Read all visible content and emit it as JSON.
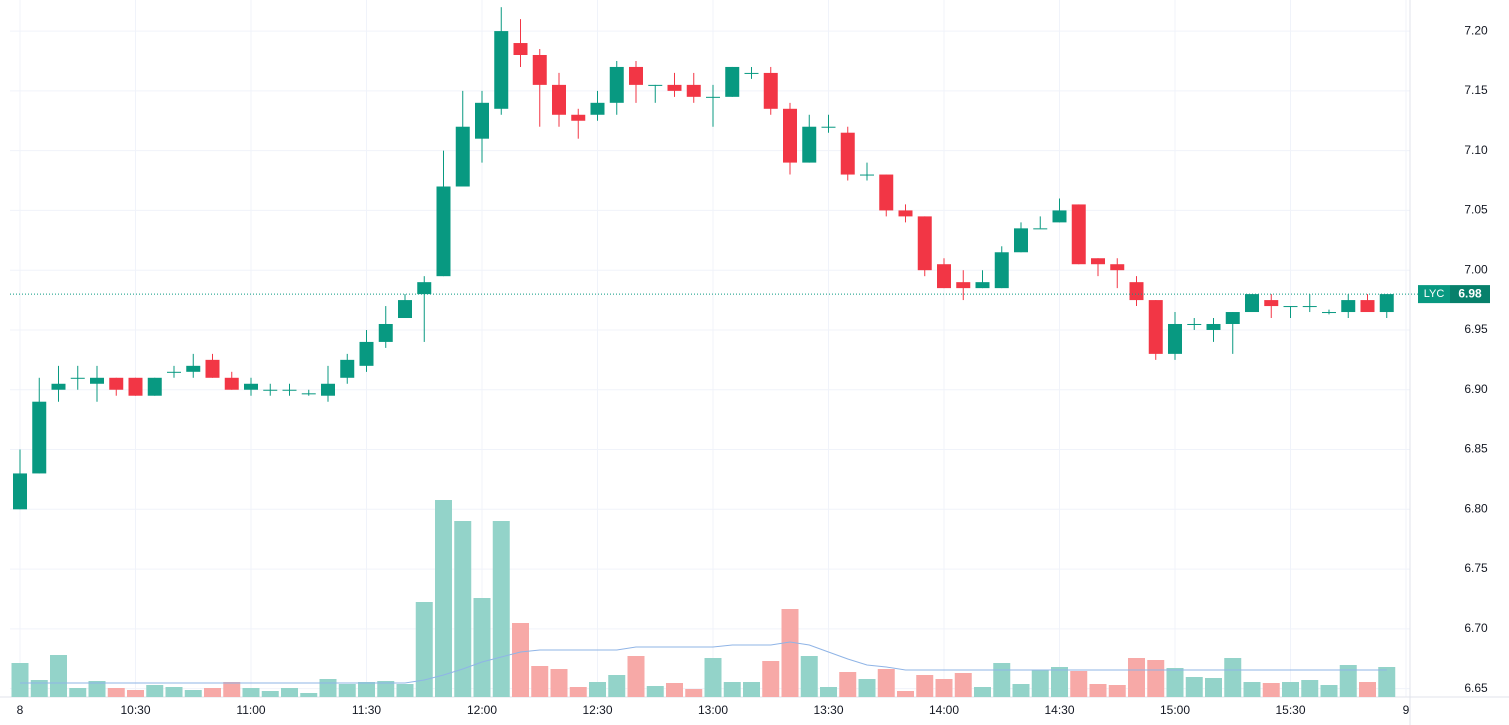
{
  "chart_data": {
    "type": "candlestick",
    "symbol": "LYC",
    "last_price": 6.98,
    "up_color": "#089981",
    "down_color": "#f23645",
    "volume_up_color": "#93d3c9",
    "volume_down_color": "#f7a9a7",
    "volume_ma_color": "#8fb4e6",
    "grid": true,
    "ylim": [
      6.643,
      7.226
    ],
    "yticks": [
      6.65,
      {
        "value": 6.7,
        "label": "6.70"
      },
      6.75,
      {
        "value": 6.8,
        "label": "6.80"
      },
      6.85,
      {
        "value": 6.9,
        "label": "6.90"
      },
      6.95,
      {
        "value": 7.0,
        "label": "7.00"
      },
      7.05,
      {
        "value": 7.1,
        "label": "7.10"
      },
      7.15,
      {
        "value": 7.2,
        "label": "7.20"
      }
    ],
    "xtick_labels": [
      "8",
      "10:30",
      "11:00",
      "11:30",
      "12:00",
      "12:30",
      "13:00",
      "13:30",
      "14:00",
      "14:30",
      "15:00",
      "15:30",
      "9"
    ],
    "open": [
      6.8,
      6.83,
      6.9,
      6.91,
      6.905,
      6.91,
      6.91,
      6.895,
      6.915,
      6.915,
      6.925,
      6.91,
      6.9,
      6.9,
      6.9,
      6.897,
      6.895,
      6.91,
      6.92,
      6.94,
      6.96,
      6.98,
      6.995,
      7.07,
      7.11,
      7.135,
      7.19,
      7.18,
      7.155,
      7.13,
      7.13,
      7.14,
      7.17,
      7.155,
      7.155,
      7.155,
      7.145,
      7.145,
      7.165,
      7.165,
      7.135,
      7.09,
      7.12,
      7.115,
      7.08,
      7.08,
      7.05,
      7.045,
      7.005,
      6.99,
      6.985,
      6.985,
      7.015,
      7.035,
      7.04,
      7.055,
      7.01,
      7.005,
      6.99,
      6.975,
      6.93,
      6.955,
      6.95,
      6.955,
      6.965,
      6.975,
      6.97,
      6.97,
      6.965,
      6.965,
      6.975,
      6.965
    ],
    "high": [
      6.85,
      6.91,
      6.92,
      6.92,
      6.92,
      6.91,
      6.91,
      6.91,
      6.92,
      6.93,
      6.93,
      6.915,
      6.91,
      6.905,
      6.905,
      6.9,
      6.92,
      6.93,
      6.95,
      6.97,
      6.98,
      6.995,
      7.1,
      7.15,
      7.15,
      7.22,
      7.21,
      7.185,
      7.165,
      7.135,
      7.15,
      7.175,
      7.175,
      7.155,
      7.165,
      7.165,
      7.155,
      7.17,
      7.17,
      7.17,
      7.14,
      7.13,
      7.13,
      7.12,
      7.09,
      7.08,
      7.055,
      7.045,
      7.01,
      7.0,
      7.0,
      7.02,
      7.04,
      7.045,
      7.06,
      7.055,
      7.01,
      7.01,
      6.995,
      6.975,
      6.965,
      6.96,
      6.96,
      6.965,
      6.98,
      6.98,
      6.97,
      6.98,
      6.967,
      6.98,
      6.98,
      6.98
    ],
    "low": [
      6.8,
      6.83,
      6.89,
      6.9,
      6.89,
      6.895,
      6.895,
      6.895,
      6.91,
      6.91,
      6.91,
      6.9,
      6.895,
      6.895,
      6.895,
      6.895,
      6.89,
      6.905,
      6.915,
      6.935,
      6.96,
      6.94,
      6.995,
      7.07,
      7.09,
      7.13,
      7.17,
      7.12,
      7.12,
      7.11,
      7.125,
      7.13,
      7.14,
      7.14,
      7.145,
      7.14,
      7.12,
      7.145,
      7.16,
      7.13,
      7.08,
      7.09,
      7.115,
      7.075,
      7.075,
      7.045,
      7.04,
      6.995,
      6.985,
      6.975,
      6.985,
      6.985,
      7.015,
      7.035,
      7.04,
      7.005,
      6.995,
      6.985,
      6.97,
      6.925,
      6.925,
      6.95,
      6.94,
      6.93,
      6.965,
      6.96,
      6.96,
      6.965,
      6.963,
      6.96,
      6.965,
      6.96
    ],
    "close": [
      6.83,
      6.89,
      6.905,
      6.91,
      6.91,
      6.9,
      6.895,
      6.91,
      6.915,
      6.92,
      6.91,
      6.9,
      6.905,
      6.9,
      6.9,
      6.897,
      6.905,
      6.925,
      6.94,
      6.955,
      6.975,
      6.99,
      7.07,
      7.12,
      7.14,
      7.2,
      7.18,
      7.155,
      7.13,
      7.125,
      7.14,
      7.17,
      7.155,
      7.155,
      7.15,
      7.145,
      7.145,
      7.17,
      7.165,
      7.135,
      7.09,
      7.12,
      7.12,
      7.08,
      7.08,
      7.05,
      7.045,
      7.0,
      6.985,
      6.985,
      6.99,
      7.015,
      7.035,
      7.035,
      7.05,
      7.005,
      7.005,
      7.0,
      6.975,
      6.93,
      6.955,
      6.955,
      6.955,
      6.965,
      6.98,
      6.97,
      6.97,
      6.97,
      6.965,
      6.975,
      6.965,
      6.98
    ],
    "volume": [
      34,
      17,
      42,
      9,
      16,
      9,
      7,
      12,
      10,
      7,
      9,
      15,
      9,
      6,
      9,
      4,
      18,
      13,
      15,
      16,
      13,
      95,
      197,
      176,
      99,
      176,
      74,
      31,
      28,
      10,
      15,
      22,
      41,
      11,
      14,
      8,
      39,
      15,
      15,
      36,
      88,
      41,
      10,
      25,
      18,
      28,
      6,
      22,
      18,
      24,
      10,
      34,
      13,
      27,
      30,
      26,
      13,
      12,
      39,
      37,
      29,
      20,
      19,
      39,
      15,
      14,
      15,
      17,
      12,
      32,
      15,
      30
    ],
    "volume_ma": [
      14,
      14,
      14,
      14,
      14,
      14,
      14,
      14,
      14,
      14,
      14,
      14,
      14,
      14,
      14,
      14,
      14,
      14,
      14,
      14,
      14,
      17,
      22,
      28,
      35,
      40,
      45,
      47,
      47,
      47,
      47,
      47,
      50,
      50,
      50,
      50,
      50,
      52,
      52,
      52,
      55,
      52,
      45,
      38,
      32,
      30,
      27,
      27,
      27,
      27,
      27,
      27,
      27,
      27,
      27,
      27,
      27,
      27,
      27,
      27,
      27,
      27,
      27,
      27,
      27,
      27,
      27,
      27,
      27,
      27,
      27,
      27
    ]
  }
}
